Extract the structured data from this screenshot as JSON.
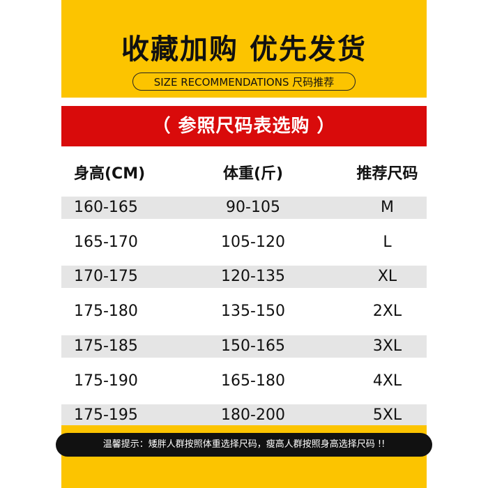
{
  "header": {
    "title": "收藏加购 优先发货",
    "subtitle": "SIZE RECOMMENDATIONS 尺码推荐"
  },
  "banner": "（ 参照尺码表选购 ）",
  "table": {
    "columns": [
      "身高(CM)",
      "体重(斤)",
      "推荐尺码"
    ],
    "rows": [
      [
        "160-165",
        "90-105",
        "M"
      ],
      [
        "165-170",
        "105-120",
        "L"
      ],
      [
        "170-175",
        "120-135",
        "XL"
      ],
      [
        "175-180",
        "135-150",
        "2XL"
      ],
      [
        "175-185",
        "150-165",
        "3XL"
      ],
      [
        "175-190",
        "165-180",
        "4XL"
      ],
      [
        "175-195",
        "180-200",
        "5XL"
      ]
    ]
  },
  "note": "温馨提示：矮胖人群按照体重选择尺码，瘦高人群按照身高选择尺码 !!"
}
